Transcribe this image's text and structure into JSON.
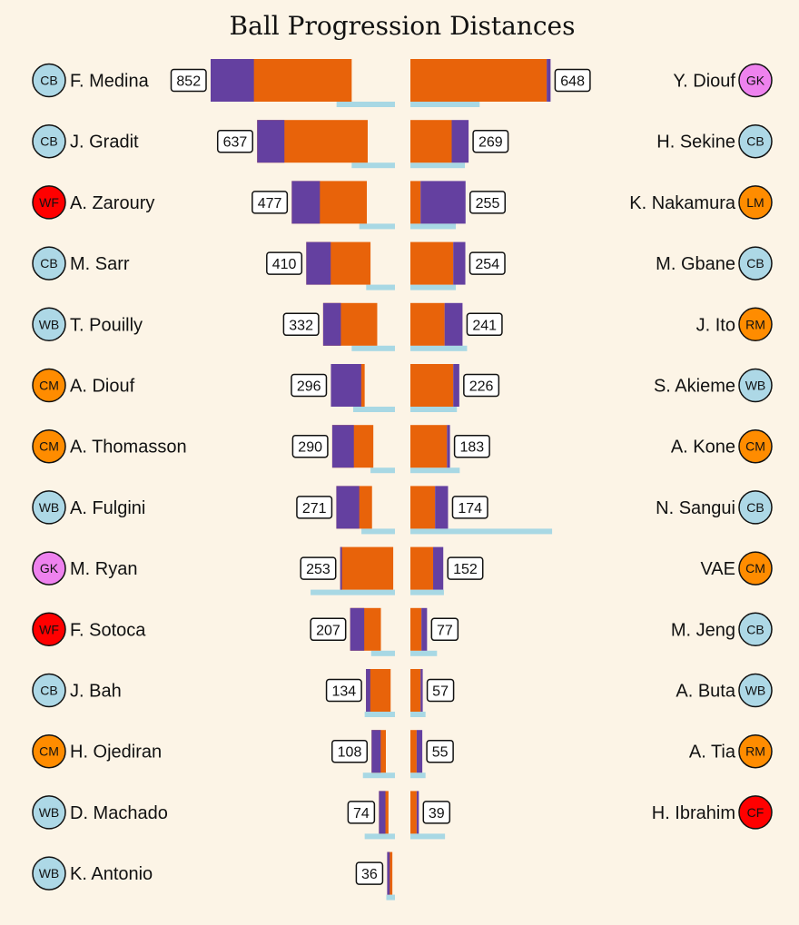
{
  "chart_data": {
    "type": "bar",
    "title": "Ball Progression Distances",
    "position_colors": {
      "CB": "#add8e6",
      "WB": "#add8e6",
      "GK": "#ee82ee",
      "WF": "#ff0000",
      "CF": "#ff0000",
      "CM": "#ff8c00",
      "LM": "#ff8c00",
      "RM": "#ff8c00"
    },
    "segment_colors": {
      "purple": "#6440a0",
      "orange": "#e8630a",
      "light_blue": "#a8d8e4"
    },
    "left_team": [
      {
        "name": "F. Medina",
        "pos": "CB",
        "total": 852,
        "purple": 200,
        "blue": 270
      },
      {
        "name": "J. Gradit",
        "pos": "CB",
        "total": 637,
        "purple": 126,
        "blue": 200
      },
      {
        "name": "A. Zaroury",
        "pos": "WF",
        "total": 477,
        "purple": 130,
        "blue": 165
      },
      {
        "name": "M. Sarr",
        "pos": "CB",
        "total": 410,
        "purple": 113,
        "blue": 133
      },
      {
        "name": "T. Pouilly",
        "pos": "WB",
        "total": 332,
        "purple": 82,
        "blue": 200
      },
      {
        "name": "A. Diouf",
        "pos": "CM",
        "total": 296,
        "purple": 140,
        "blue": 193
      },
      {
        "name": "A. Thomasson",
        "pos": "CM",
        "total": 290,
        "purple": 100,
        "blue": 113
      },
      {
        "name": "A. Fulgini",
        "pos": "WB",
        "total": 271,
        "purple": 106,
        "blue": 155
      },
      {
        "name": "M. Ryan",
        "pos": "GK",
        "total": 253,
        "purple": 8,
        "blue": 390
      },
      {
        "name": "F. Sotoca",
        "pos": "WF",
        "total": 207,
        "purple": 65,
        "blue": 110
      },
      {
        "name": "J. Bah",
        "pos": "CB",
        "total": 134,
        "purple": 20,
        "blue": 140
      },
      {
        "name": "H. Ojediran",
        "pos": "CM",
        "total": 108,
        "purple": 42,
        "blue": 148
      },
      {
        "name": "D. Machado",
        "pos": "WB",
        "total": 74,
        "purple": 30,
        "blue": 140
      },
      {
        "name": "K. Antonio",
        "pos": "WB",
        "total": 36,
        "purple": 12,
        "blue": 40
      }
    ],
    "right_team": [
      {
        "name": "Y. Diouf",
        "pos": "GK",
        "total": 648,
        "purple": 18,
        "blue": 320
      },
      {
        "name": "H. Sekine",
        "pos": "CB",
        "total": 269,
        "purple": 78,
        "blue": 252
      },
      {
        "name": "K. Nakamura",
        "pos": "LM",
        "total": 255,
        "purple": 208,
        "blue": 210
      },
      {
        "name": "M. Gbane",
        "pos": "CB",
        "total": 254,
        "purple": 56,
        "blue": 210
      },
      {
        "name": "J. Ito",
        "pos": "RM",
        "total": 241,
        "purple": 83,
        "blue": 262
      },
      {
        "name": "S. Akieme",
        "pos": "WB",
        "total": 226,
        "purple": 28,
        "blue": 215
      },
      {
        "name": "A. Kone",
        "pos": "CM",
        "total": 183,
        "purple": 14,
        "blue": 228
      },
      {
        "name": "N. Sangui",
        "pos": "CB",
        "total": 174,
        "purple": 60,
        "blue": 655
      },
      {
        "name": "VAE",
        "pos": "CM",
        "total": 152,
        "purple": 47,
        "blue": 155
      },
      {
        "name": "M. Jeng",
        "pos": "CB",
        "total": 77,
        "purple": 26,
        "blue": 123
      },
      {
        "name": "A. Buta",
        "pos": "WB",
        "total": 57,
        "purple": 10,
        "blue": 70
      },
      {
        "name": "A. Tia",
        "pos": "RM",
        "total": 55,
        "purple": 26,
        "blue": 70
      },
      {
        "name": "H. Ibrahim",
        "pos": "CF",
        "total": 39,
        "purple": 10,
        "blue": 160
      }
    ]
  }
}
